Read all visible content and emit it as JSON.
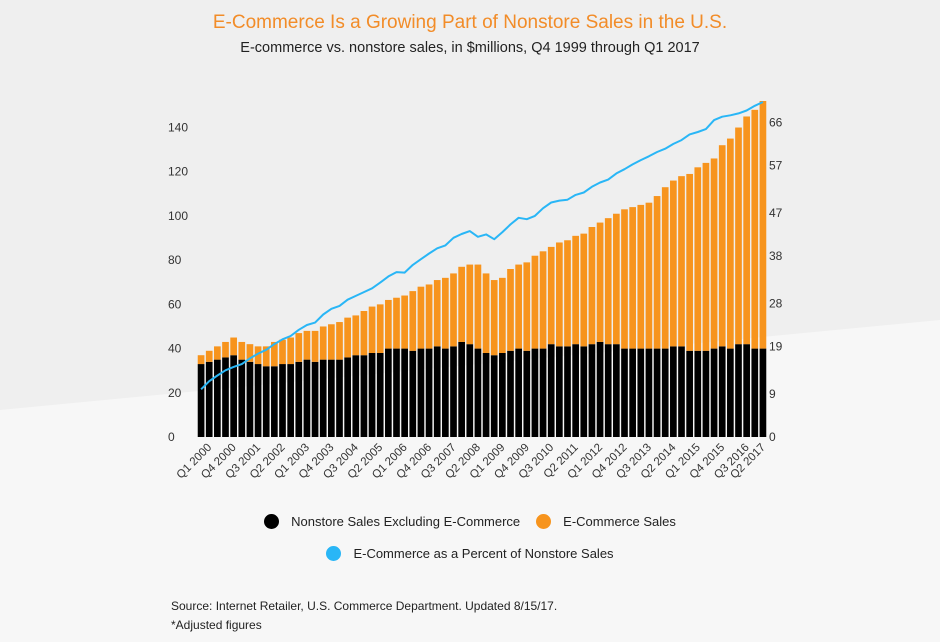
{
  "title": "E-Commerce Is a Growing Part of Nonstore Sales in the U.S.",
  "subtitle": "E-commerce vs. nonstore sales, in $millions, Q4 1999 through Q1 2017",
  "source": "Source: Internet Retailer, U.S. Commerce Department. Updated 8/15/17.",
  "footnote": "*Adjusted figures",
  "colors": {
    "nonstore": "#000000",
    "ecommerce": "#f7941d",
    "percent": "#29b6f6",
    "title": "#f28c28",
    "axis_text": "#333333"
  },
  "chart_data": {
    "type": "bar",
    "stacked": true,
    "categories": [
      "Q4 1999",
      "Q1 2000",
      "Q2 2000",
      "Q3 2000",
      "Q4 2000",
      "Q1 2001",
      "Q2 2001",
      "Q3 2001",
      "Q4 2001",
      "Q1 2002",
      "Q2 2002",
      "Q3 2002",
      "Q4 2002",
      "Q1 2003",
      "Q2 2003",
      "Q3 2003",
      "Q4 2003",
      "Q1 2004",
      "Q2 2004",
      "Q3 2004",
      "Q4 2004",
      "Q1 2005",
      "Q2 2005",
      "Q3 2005",
      "Q4 2005",
      "Q1 2006",
      "Q2 2006",
      "Q3 2006",
      "Q4 2006",
      "Q1 2007",
      "Q2 2007",
      "Q3 2007",
      "Q4 2007",
      "Q1 2008",
      "Q2 2008",
      "Q3 2008",
      "Q4 2008",
      "Q1 2009",
      "Q2 2009",
      "Q3 2009",
      "Q4 2009",
      "Q1 2010",
      "Q2 2010",
      "Q3 2010",
      "Q4 2010",
      "Q1 2011",
      "Q2 2011",
      "Q3 2011",
      "Q4 2011",
      "Q1 2012",
      "Q2 2012",
      "Q3 2012",
      "Q4 2012",
      "Q1 2013",
      "Q2 2013",
      "Q3 2013",
      "Q4 2013",
      "Q1 2014",
      "Q2 2014",
      "Q3 2014",
      "Q4 2014",
      "Q1 2015",
      "Q2 2015",
      "Q3 2015",
      "Q4 2015",
      "Q1 2016",
      "Q2 2016",
      "Q3 2016",
      "Q4 2016",
      "Q1 2017"
    ],
    "x_tick_labels": [
      "Q1 2000",
      "Q4 2000",
      "Q3 2001",
      "Q2 2002",
      "Q1 2003",
      "Q4 2003",
      "Q3 2004",
      "Q2 2005",
      "Q1 2006",
      "Q4 2006",
      "Q3 2007",
      "Q2 2008",
      "Q1 2009",
      "Q4 2009",
      "Q3 2010",
      "Q2 2011",
      "Q1 2012",
      "Q4 2012",
      "Q3 2013",
      "Q2 2014",
      "Q1 2015",
      "Q4 2015",
      "Q3 2016",
      "Q2 2017"
    ],
    "left_axis": {
      "ticks": [
        0,
        20,
        40,
        60,
        80,
        100,
        120,
        140
      ],
      "ylim": [
        0,
        152
      ]
    },
    "right_axis": {
      "ticks": [
        0,
        9,
        19,
        28,
        38,
        47,
        57,
        66
      ],
      "ylim": [
        0,
        70.5
      ]
    },
    "series": [
      {
        "name": "Nonstore Sales Excluding E-Commerce",
        "axis": "left",
        "values": [
          33,
          34,
          35,
          36,
          37,
          35,
          34,
          33,
          32,
          32,
          33,
          33,
          34,
          35,
          34,
          35,
          35,
          35,
          36,
          37,
          37,
          38,
          38,
          40,
          40,
          40,
          39,
          40,
          40,
          41,
          40,
          41,
          43,
          42,
          40,
          38,
          37,
          38,
          39,
          40,
          39,
          40,
          40,
          42,
          41,
          41,
          42,
          41,
          42,
          43,
          42,
          42,
          40,
          40,
          40,
          40,
          40,
          40,
          41,
          41,
          39,
          39,
          39,
          40,
          41,
          40,
          42,
          42,
          40,
          40
        ],
        "color": "#000000"
      },
      {
        "name": "E-Commerce Sales",
        "axis": "left",
        "values": [
          4,
          5,
          6,
          7,
          8,
          8,
          8,
          8,
          9,
          11,
          11,
          12,
          13,
          13,
          14,
          15,
          16,
          17,
          18,
          18,
          20,
          21,
          22,
          22,
          23,
          24,
          27,
          28,
          29,
          30,
          32,
          33,
          34,
          36,
          38,
          36,
          34,
          34,
          37,
          38,
          40,
          42,
          44,
          44,
          47,
          48,
          49,
          51,
          53,
          54,
          57,
          59,
          63,
          64,
          65,
          66,
          69,
          73,
          75,
          77,
          80,
          83,
          85,
          86,
          91,
          95,
          98,
          103,
          108,
          112
        ],
        "color": "#f7941d"
      },
      {
        "name": "E-Commerce as a Percent of Nonstore Sales",
        "axis": "right",
        "type": "line",
        "values": [
          10,
          11.7,
          12.9,
          14,
          14.7,
          15.3,
          16.5,
          17.5,
          18.3,
          19.5,
          20.5,
          21.2,
          22.5,
          23.5,
          24,
          25.7,
          26.9,
          27.5,
          28.8,
          29.6,
          30.4,
          31.2,
          32.4,
          33.7,
          34.6,
          34.5,
          36.1,
          37.3,
          38.5,
          39.6,
          40.2,
          41.8,
          42.6,
          43.2,
          42,
          42.5,
          41.5,
          43,
          44.6,
          46,
          45.7,
          46.4,
          48,
          49.2,
          49.6,
          49.8,
          50.8,
          51.3,
          52.5,
          53.4,
          54,
          55.3,
          56.2,
          57.2,
          58.1,
          58.9,
          59.8,
          60.5,
          61.5,
          62.3,
          63.5,
          64,
          64.6,
          66.5,
          67.2,
          67.5,
          67.9,
          68.5,
          69.5,
          70.3
        ],
        "color": "#29b6f6"
      }
    ]
  }
}
